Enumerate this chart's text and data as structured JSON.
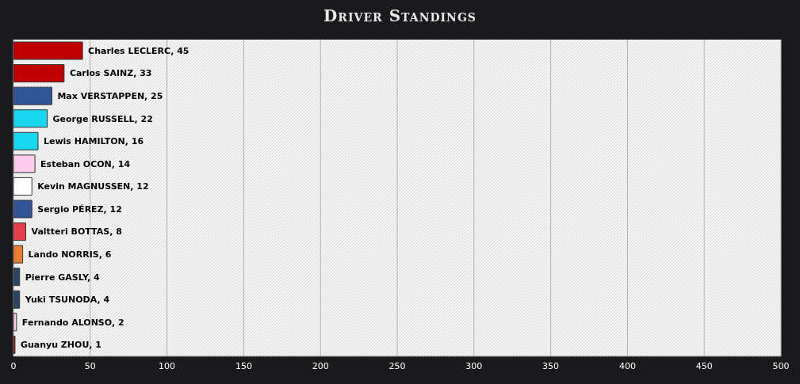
{
  "chart_data": {
    "type": "bar",
    "orientation": "horizontal",
    "title": "Driver Standings",
    "categories": [
      null,
      null,
      null,
      null,
      null,
      null,
      null,
      null,
      null,
      null,
      null,
      null,
      null,
      null
    ],
    "values": [
      45,
      33,
      25,
      22,
      16,
      14,
      12,
      12,
      8,
      6,
      4,
      4,
      2,
      1
    ],
    "value_labels": [
      "Charles LECLERC, 45",
      "Carlos SAINZ, 33",
      "Max VERSTAPPEN, 25",
      "George RUSSELL, 22",
      "Lewis HAMILTON, 16",
      "Esteban OCON, 14",
      "Kevin MAGNUSSEN, 12",
      "Sergio PÉREZ, 12",
      "Valtteri BOTTAS, 8",
      "Lando NORRIS, 6",
      "Pierre GASLY, 4",
      "Yuki TSUNODA, 4",
      "Fernando ALONSO, 2",
      "Guanyu ZHOU, 1"
    ],
    "colors": [
      "#c00000",
      "#c00000",
      "#2f5597",
      "#17d7ee",
      "#17d7ee",
      "#ffccee",
      "#ffffff",
      "#2f5597",
      "#e8404a",
      "#ed7d31",
      "#2b4562",
      "#2b4562",
      "#ffccee",
      "#c00000"
    ],
    "xlim": [
      0,
      500
    ],
    "xticks": [
      0,
      50,
      100,
      150,
      200,
      250,
      300,
      350,
      400,
      450,
      500
    ],
    "grid": "x",
    "legend": false
  }
}
